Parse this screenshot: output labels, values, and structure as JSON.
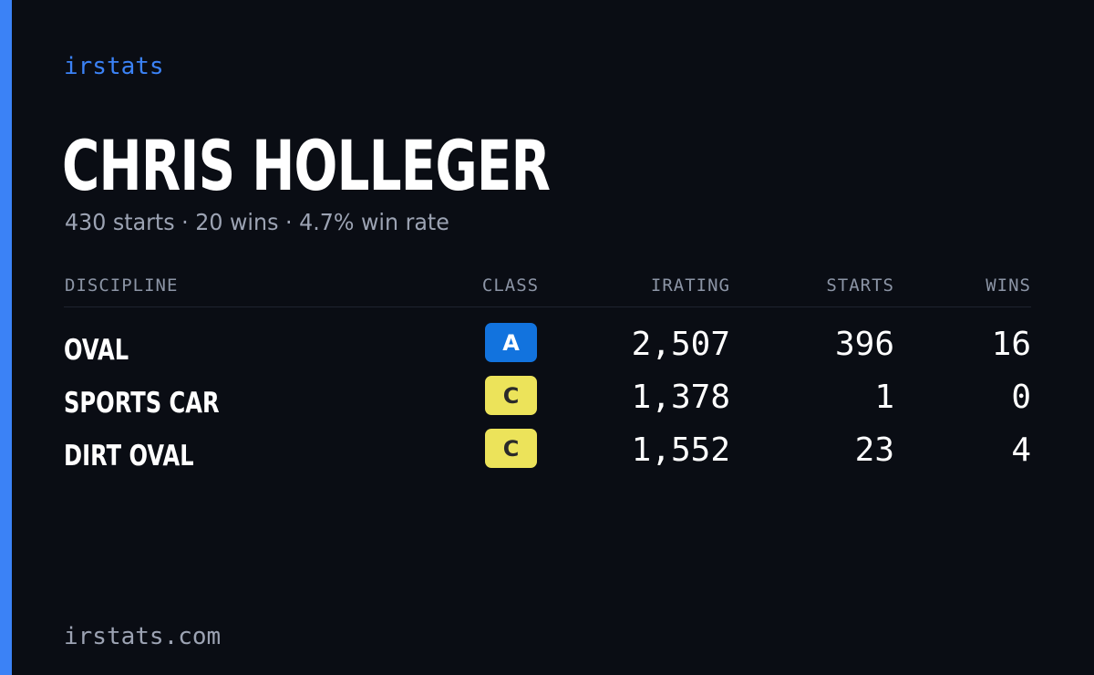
{
  "brand": "irstats",
  "player": {
    "name": "CHRIS HOLLEGER",
    "summary": "430 starts · 20 wins · 4.7% win rate"
  },
  "table": {
    "headers": {
      "discipline": "DISCIPLINE",
      "class": "CLASS",
      "irating": "IRATING",
      "starts": "STARTS",
      "wins": "WINS"
    },
    "rows": [
      {
        "discipline": "OVAL",
        "class": "A",
        "irating": "2,507",
        "starts": "396",
        "wins": "16"
      },
      {
        "discipline": "SPORTS CAR",
        "class": "C",
        "irating": "1,378",
        "starts": "1",
        "wins": "0"
      },
      {
        "discipline": "DIRT OVAL",
        "class": "C",
        "irating": "1,552",
        "starts": "23",
        "wins": "4"
      }
    ]
  },
  "footer": {
    "domain": "irstats.com"
  },
  "colors": {
    "background": "#0a0d14",
    "accent": "#3b82f6",
    "class_a_badge": "#1273de",
    "class_a_text": "#ffffff",
    "class_c_badge": "#ece35a",
    "class_c_text": "#2a2a2a"
  }
}
